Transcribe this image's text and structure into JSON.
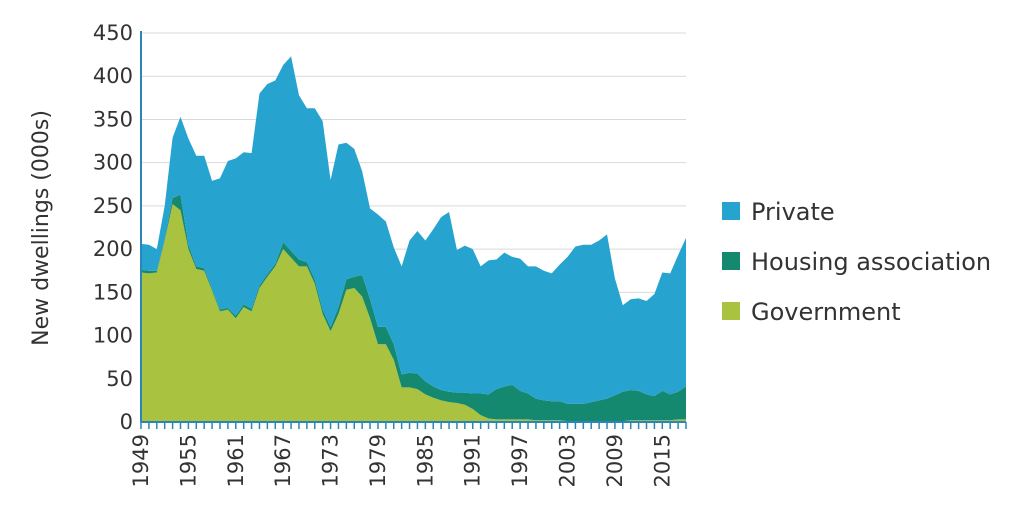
{
  "chart_data": {
    "type": "area",
    "stacked": true,
    "title": "",
    "xlabel": "",
    "ylabel": "New dwellings (000s)",
    "ylim": [
      0,
      450
    ],
    "xlim": [
      1949,
      2018
    ],
    "yticks": [
      0,
      50,
      100,
      150,
      200,
      250,
      300,
      350,
      400,
      450
    ],
    "xticks": [
      1949,
      1955,
      1961,
      1967,
      1973,
      1979,
      1985,
      1991,
      1997,
      2003,
      2009,
      2015
    ],
    "grid": "horizontal",
    "legend_position": "right",
    "x": [
      1949,
      1950,
      1951,
      1952,
      1953,
      1954,
      1955,
      1956,
      1957,
      1958,
      1959,
      1960,
      1961,
      1962,
      1963,
      1964,
      1965,
      1966,
      1967,
      1968,
      1969,
      1970,
      1971,
      1972,
      1973,
      1974,
      1975,
      1976,
      1977,
      1978,
      1979,
      1980,
      1981,
      1982,
      1983,
      1984,
      1985,
      1986,
      1987,
      1988,
      1989,
      1990,
      1991,
      1992,
      1993,
      1994,
      1995,
      1996,
      1997,
      1998,
      1999,
      2000,
      2001,
      2002,
      2003,
      2004,
      2005,
      2006,
      2007,
      2008,
      2009,
      2010,
      2011,
      2012,
      2013,
      2014,
      2015,
      2016,
      2017,
      2018
    ],
    "series": [
      {
        "name": "Government",
        "color": "#a9c23f",
        "values": [
          173,
          172,
          173,
          210,
          252,
          245,
          200,
          177,
          175,
          152,
          128,
          130,
          120,
          133,
          128,
          155,
          168,
          180,
          200,
          190,
          180,
          180,
          160,
          125,
          105,
          125,
          153,
          155,
          145,
          120,
          90,
          90,
          72,
          40,
          40,
          38,
          32,
          28,
          25,
          23,
          22,
          20,
          15,
          8,
          4,
          3,
          3,
          3,
          3,
          3,
          2,
          2,
          2,
          2,
          1,
          1,
          1,
          1,
          1,
          1,
          1,
          1,
          2,
          2,
          2,
          2,
          2,
          2,
          3,
          3
        ]
      },
      {
        "name": "Housing association",
        "color": "#15896f",
        "values": [
          3,
          3,
          2,
          2,
          7,
          18,
          5,
          3,
          3,
          2,
          2,
          2,
          3,
          3,
          3,
          3,
          3,
          3,
          8,
          8,
          8,
          5,
          5,
          5,
          5,
          8,
          12,
          13,
          25,
          22,
          20,
          20,
          18,
          15,
          17,
          18,
          15,
          13,
          12,
          12,
          12,
          14,
          18,
          25,
          28,
          35,
          38,
          40,
          33,
          30,
          25,
          23,
          22,
          22,
          20,
          20,
          20,
          22,
          24,
          26,
          30,
          34,
          35,
          34,
          30,
          28,
          34,
          30,
          32,
          38
        ]
      },
      {
        "name": "Private",
        "color": "#27a3cf",
        "values": [
          30,
          30,
          25,
          38,
          70,
          90,
          123,
          128,
          130,
          125,
          152,
          170,
          182,
          176,
          180,
          222,
          220,
          212,
          205,
          225,
          190,
          178,
          198,
          218,
          170,
          188,
          158,
          148,
          120,
          105,
          130,
          122,
          112,
          125,
          153,
          165,
          163,
          182,
          200,
          208,
          165,
          170,
          167,
          147,
          155,
          150,
          155,
          148,
          153,
          147,
          153,
          150,
          148,
          158,
          170,
          182,
          184,
          182,
          185,
          190,
          135,
          100,
          105,
          107,
          108,
          118,
          137,
          140,
          158,
          172
        ]
      }
    ]
  }
}
